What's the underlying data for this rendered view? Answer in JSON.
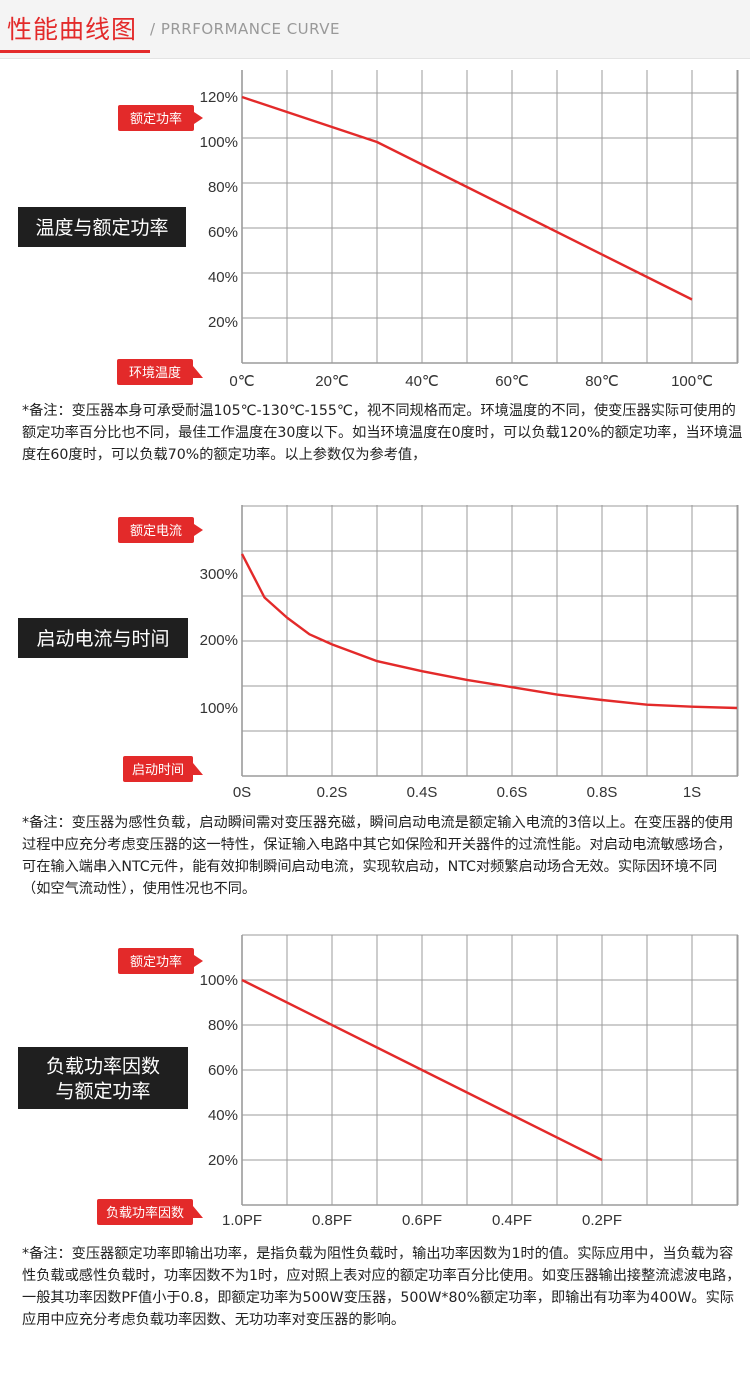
{
  "header": {
    "title": "性能曲线图",
    "subtitle": "/ PRRFORMANCE CURVE"
  },
  "colors": {
    "accent": "#e32a2a",
    "grid": "#9b9b9b",
    "dark_label": "#1f1f1f"
  },
  "charts": [
    {
      "side_label_lines": [
        "温度与额定功率"
      ],
      "y_tag": "额定功率",
      "x_tag": "环境温度",
      "note": "*备注：变压器本身可承受耐温105℃-130℃-155℃，视不同规格而定。环境温度的不同，使变压器实际可使用的额定功率百分比也不同，最佳工作温度在30度以下。如当环境温度在0度时，可以负载120%的额定功率，当环境温度在60度时，可以负载70%的额定功率。以上参数仅为参考值，"
    },
    {
      "side_label_lines": [
        "启动电流与时间"
      ],
      "y_tag": "额定电流",
      "x_tag": "启动时间",
      "note": "*备注：变压器为感性负载，启动瞬间需对变压器充磁，瞬间启动电流是额定输入电流的3倍以上。在变压器的使用过程中应充分考虑变压器的这一特性，保证输入电路中其它如保险和开关器件的过流性能。对启动电流敏感场合，可在输入端串入NTC元件，能有效抑制瞬间启动电流，实现软启动，NTC对频繁启动场合无效。实际因环境不同（如空气流动性），使用性况也不同。"
    },
    {
      "side_label_lines": [
        "负载功率因数",
        "与额定功率"
      ],
      "y_tag": "额定功率",
      "x_tag": "负载功率因数",
      "note": "*备注：变压器额定功率即输出功率，是指负载为阻性负载时，输出功率因数为1时的值。实际应用中，当负载为容性负载或感性负载时，功率因数不为1时，应对照上表对应的额定功率百分比使用。如变压器输出接整流滤波电路，一般其功率因数PF值小于0.8，即额定功率为500W变压器，500W*80%额定功率，即输出有功率为400W。实际应用中应充分考虑负载功率因数、无功功率对变压器的影响。"
    }
  ],
  "chart_data": [
    {
      "type": "line",
      "x_tick_labels": [
        "0℃",
        "20℃",
        "40℃",
        "60℃",
        "80℃",
        "100℃"
      ],
      "y_tick_labels": [
        "120%",
        "100%",
        "80%",
        "60%",
        "40%",
        "20%"
      ],
      "x_ticks": [
        0,
        20,
        40,
        60,
        80,
        100
      ],
      "y_ticks": [
        120,
        100,
        80,
        60,
        40,
        20
      ],
      "xlim": [
        0,
        110
      ],
      "ylim": [
        0,
        120
      ],
      "series": [
        {
          "x": [
            0,
            30,
            100
          ],
          "y": [
            120,
            100,
            30
          ]
        }
      ],
      "grid": true
    },
    {
      "type": "line",
      "x_tick_labels": [
        "0S",
        "0.2S",
        "0.4S",
        "0.6S",
        "0.8S",
        "1S"
      ],
      "y_tick_labels": [
        "300%",
        "200%",
        "100%"
      ],
      "x_ticks": [
        0,
        0.2,
        0.4,
        0.6,
        0.8,
        1.0
      ],
      "y_ticks": [
        300,
        200,
        100
      ],
      "xlim": [
        0,
        1.1
      ],
      "ylim": [
        0,
        400
      ],
      "series": [
        {
          "x": [
            0,
            0.05,
            0.1,
            0.15,
            0.2,
            0.3,
            0.4,
            0.5,
            0.6,
            0.7,
            0.8,
            0.9,
            1.0,
            1.1
          ],
          "y": [
            330,
            265,
            235,
            210,
            195,
            170,
            155,
            142,
            131,
            120,
            112,
            105,
            102,
            100
          ]
        }
      ],
      "grid": true
    },
    {
      "type": "line",
      "x_tick_labels": [
        "1.0PF",
        "0.8PF",
        "0.6PF",
        "0.4PF",
        "0.2PF"
      ],
      "y_tick_labels": [
        "100%",
        "80%",
        "60%",
        "40%",
        "20%"
      ],
      "x_ticks": [
        1.0,
        0.8,
        0.6,
        0.4,
        0.2
      ],
      "y_ticks": [
        100,
        80,
        60,
        40,
        20
      ],
      "xlim": [
        1.0,
        -0.1
      ],
      "ylim": [
        0,
        120
      ],
      "series": [
        {
          "x": [
            1.0,
            0.2
          ],
          "y": [
            100,
            20
          ]
        }
      ],
      "grid": true
    }
  ]
}
